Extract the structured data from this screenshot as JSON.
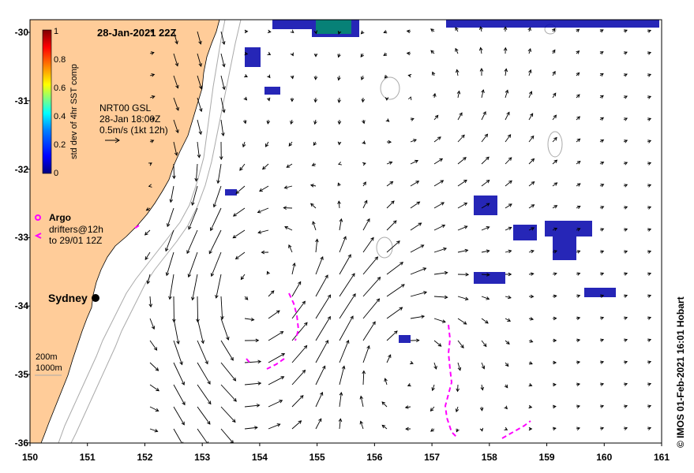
{
  "title_date": "28-Jan-2021 22Z",
  "model": {
    "line1": "NRT00 GSL",
    "line2": "28-Jan 18:00Z",
    "line3": "0.5m/s (1kt 12h)"
  },
  "colorbar": {
    "label": "std dev of 4hr SST comp",
    "ticks": [
      "1",
      "0.8",
      "0.6",
      "0.4",
      "0.2",
      "0"
    ],
    "colors": [
      "#7f0000",
      "#ff0000",
      "#ff8000",
      "#ffff00",
      "#80ff80",
      "#00ffff",
      "#0080ff",
      "#0000ff",
      "#00007f"
    ]
  },
  "legend": {
    "argo_label": "Argo",
    "drifters_line1": "drifters@12h",
    "drifters_line2": "to 29/01 12Z",
    "argo_color": "#ff00ff"
  },
  "city": {
    "name": "Sydney"
  },
  "depth_legend": {
    "line1": "200m",
    "line2": "1000m"
  },
  "credit": "© IMOS 01-Feb-2021 16:01 Hobart",
  "axes": {
    "x_ticks": [
      "150",
      "151",
      "152",
      "153",
      "154",
      "155",
      "156",
      "157",
      "158",
      "159",
      "160",
      "161"
    ],
    "y_ticks": [
      "-30",
      "-31",
      "-32",
      "-33",
      "-34",
      "-35",
      "-36"
    ]
  },
  "colors": {
    "land": "#ffcc99",
    "ocean": "#ffffff",
    "sst_patch": "#0000aa",
    "isobath": "#aaaaaa"
  }
}
